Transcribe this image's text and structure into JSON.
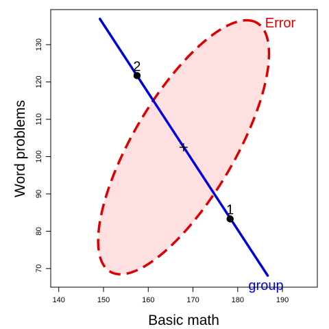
{
  "chart_data": {
    "type": "scatter",
    "xlabel": "Basic math",
    "ylabel": "Word problems",
    "x_ticks": [
      140,
      150,
      160,
      170,
      180,
      190
    ],
    "y_ticks": [
      70,
      80,
      90,
      100,
      110,
      120,
      130
    ],
    "xlim": [
      138.2,
      197.8
    ],
    "ylim": [
      65.0,
      139.4
    ],
    "grid": false,
    "points": [
      {
        "label": "1",
        "x": 178.3,
        "y": 83.3
      },
      {
        "label": "2",
        "x": 157.5,
        "y": 121.7
      }
    ],
    "center": {
      "x": 167.9,
      "y": 102.5,
      "marker": "+"
    },
    "error_ellipse": {
      "label": "Error",
      "center": {
        "x": 167.9,
        "y": 102.5
      },
      "cov": [
        [
          365,
          480
        ],
        [
          480,
          1159
        ]
      ],
      "color": "#dd0000",
      "fill": "#ffe0e0",
      "line_style": "dashed"
    },
    "group_line": {
      "label": "group",
      "color": "#0000dd",
      "from": {
        "x": 149.2,
        "y": 136.9
      },
      "to": {
        "x": 186.7,
        "y": 68.1
      }
    }
  }
}
